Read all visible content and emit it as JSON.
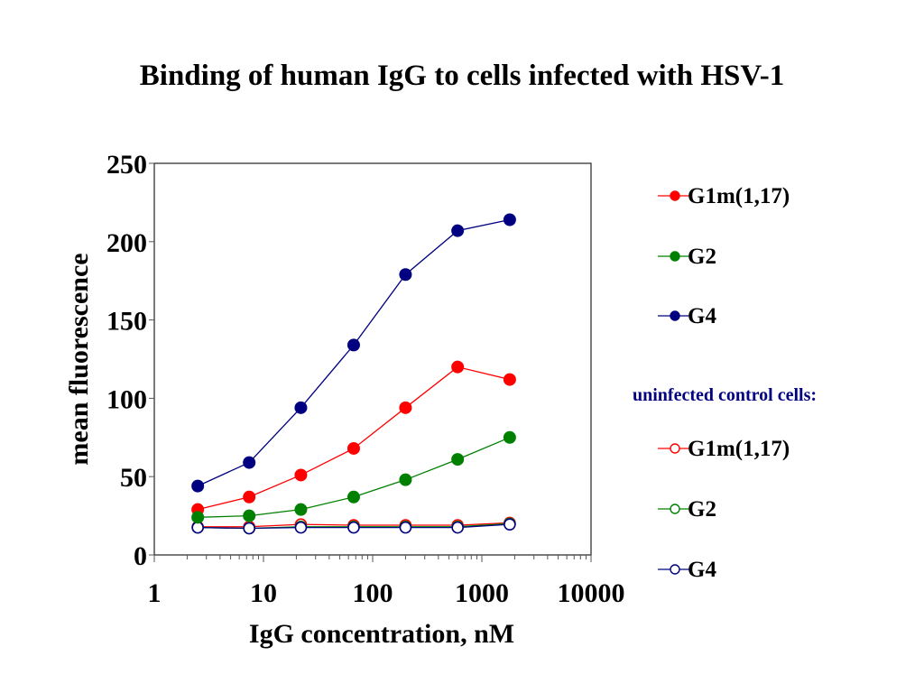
{
  "chart_data": {
    "type": "line",
    "title": "Binding of human IgG to cells infected with HSV-1",
    "xlabel": "IgG concentration, nM",
    "ylabel": "mean fluorescence",
    "xscale": "log",
    "xlim": [
      1,
      10000
    ],
    "ylim": [
      0,
      250
    ],
    "xticks": [
      1,
      10,
      100,
      1000,
      10000
    ],
    "xtick_labels": [
      "1",
      "10",
      "100",
      "1000",
      "10000"
    ],
    "yticks": [
      0,
      50,
      100,
      150,
      200,
      250
    ],
    "ytick_labels": [
      "0",
      "50",
      "100",
      "150",
      "200",
      "250"
    ],
    "grid": false,
    "legend_position": "right",
    "legend_subtitle": "uninfected control cells:",
    "x": [
      2.5,
      7.4,
      22,
      67,
      200,
      600,
      1800
    ],
    "series": [
      {
        "name": "G1m(1,17)",
        "group": "infected",
        "marker": "filled",
        "color": "#ff0000",
        "values": [
          29,
          37,
          51,
          68,
          94,
          120,
          112
        ]
      },
      {
        "name": "G2",
        "group": "infected",
        "marker": "filled",
        "color": "#008000",
        "values": [
          24,
          25,
          29,
          37,
          48,
          61,
          75
        ]
      },
      {
        "name": "G4",
        "group": "infected",
        "marker": "filled",
        "color": "#000080",
        "values": [
          44,
          59,
          94,
          134,
          179,
          207,
          214
        ]
      },
      {
        "name": "G1m(1,17)",
        "group": "uninfected",
        "marker": "open",
        "color": "#ff0000",
        "values": [
          18,
          18,
          19.5,
          19,
          19,
          19,
          20.5
        ]
      },
      {
        "name": "G2",
        "group": "uninfected",
        "marker": "open",
        "color": "#008000",
        "values": [
          17.5,
          17,
          18,
          18,
          18,
          18,
          20
        ]
      },
      {
        "name": "G4",
        "group": "uninfected",
        "marker": "open",
        "color": "#000080",
        "values": [
          17.5,
          17,
          17.5,
          17.5,
          17.5,
          17.5,
          19.5
        ]
      }
    ]
  }
}
